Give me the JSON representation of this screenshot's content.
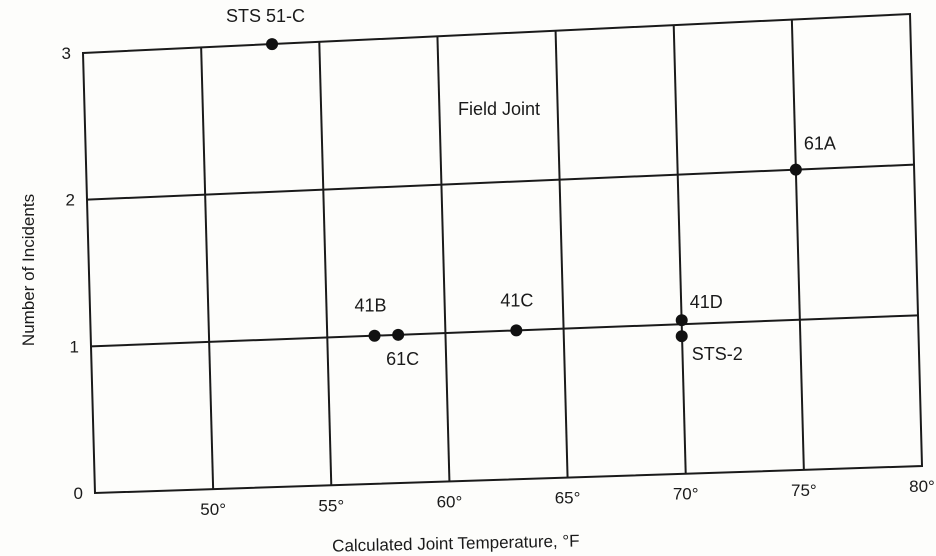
{
  "chart_data": {
    "type": "scatter",
    "title": "",
    "inner_label": "Field Joint",
    "xlabel": "Calculated Joint Temperature, °F",
    "ylabel": "Number of Incidents",
    "xlim": [
      45,
      80
    ],
    "ylim": [
      0,
      3
    ],
    "x_ticks": [
      50,
      55,
      60,
      65,
      70,
      75,
      80
    ],
    "x_tick_labels": [
      "50°",
      "55°",
      "60°",
      "65°",
      "70°",
      "75°",
      "80°"
    ],
    "y_ticks": [
      0,
      1,
      2,
      3
    ],
    "y_tick_labels": [
      "0",
      "1",
      "2",
      "3"
    ],
    "grid": true,
    "points": [
      {
        "x": 53,
        "y": 3,
        "label": "STS 51-C"
      },
      {
        "x": 57,
        "y": 1,
        "label": "41B"
      },
      {
        "x": 58,
        "y": 1,
        "label": "61C"
      },
      {
        "x": 63,
        "y": 1,
        "label": "41C"
      },
      {
        "x": 70,
        "y": 1,
        "label": "41D"
      },
      {
        "x": 70,
        "y": 1,
        "label": "STS-2"
      },
      {
        "x": 75,
        "y": 2,
        "label": "61A"
      }
    ]
  }
}
